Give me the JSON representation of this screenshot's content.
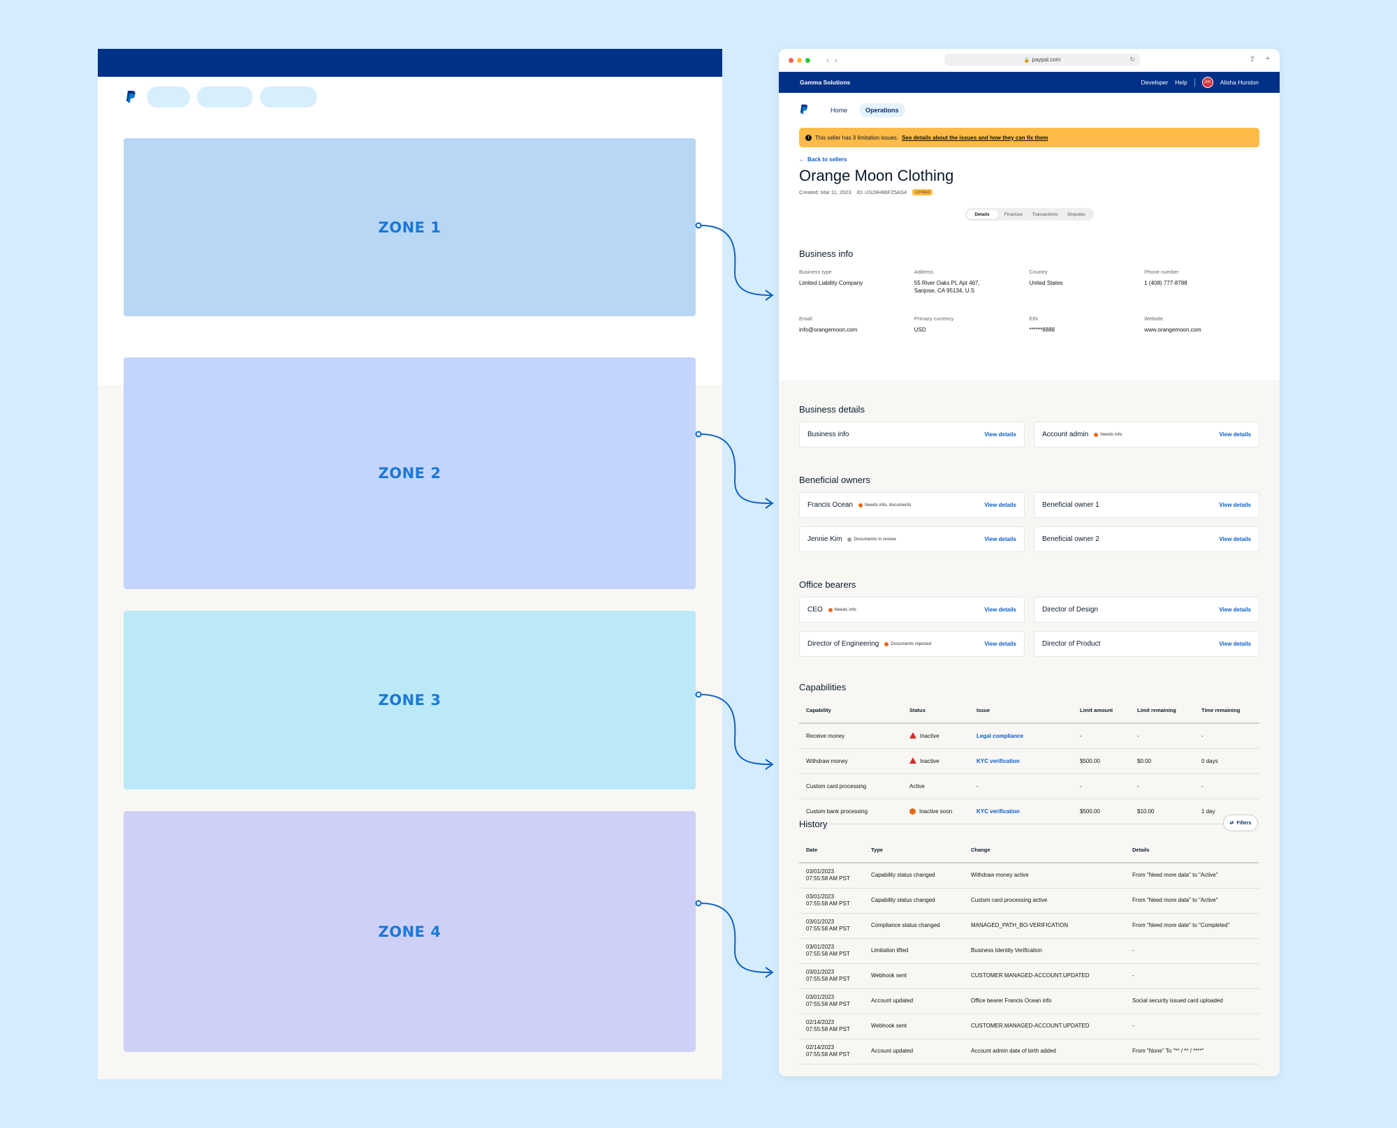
{
  "wireframe": {
    "zones": [
      "ZONE 1",
      "ZONE 2",
      "ZONE 3",
      "ZONE 4"
    ],
    "colors": {
      "topbar": "#003087",
      "zone1": "#b7d7f5",
      "zone2": "#c4d5fd",
      "zone3": "#bbe9f8",
      "zone4": "#cfd0f7",
      "connector": "#0f63c4"
    }
  },
  "browser": {
    "url": "paypal.com"
  },
  "topbar": {
    "brand": "Gamma Solutions",
    "developer": "Developer",
    "help": "Help",
    "avatar_initials": "AH",
    "user_name": "Alisha Hurston"
  },
  "nav": {
    "home": "Home",
    "operations": "Operations"
  },
  "alert": {
    "text": "This seller has 3 limitation issues.",
    "link": "See details about the issues and how they can fix them"
  },
  "seller": {
    "back": "Back to sellers",
    "name": "Orange Moon Clothing",
    "created": "Created: Mar 11, 2023",
    "id": "ID: US28H86FZ5AS4",
    "status": "Limited"
  },
  "tabs": [
    "Details",
    "Finances",
    "Transactions",
    "Disputes"
  ],
  "business_info": {
    "title": "Business info",
    "fields": [
      {
        "label": "Business type",
        "value": "Limited Liability Company"
      },
      {
        "label": "Address",
        "value": "55 River Oaks PL Apt 467, Sanjose, CA 95134, U.S"
      },
      {
        "label": "Country",
        "value": "United States"
      },
      {
        "label": "Phone number",
        "value": "1 (408) 777-8788"
      },
      {
        "label": "Email",
        "value": "info@orangemoon.com"
      },
      {
        "label": "Primary currency",
        "value": "USD"
      },
      {
        "label": "EIN",
        "value": "******8888"
      },
      {
        "label": "Website",
        "value": "www.orangemoon.com"
      }
    ]
  },
  "view_details": "View details",
  "business_details": {
    "title": "Business details",
    "cards": [
      {
        "name": "Business info",
        "status": ""
      },
      {
        "name": "Account admin",
        "status": "Needs info"
      }
    ]
  },
  "beneficial_owners": {
    "title": "Beneficial owners",
    "cards": [
      {
        "name": "Francis Ocean",
        "status": "Needs info, documents"
      },
      {
        "name": "Beneficial owner 1",
        "status": ""
      },
      {
        "name": "Jennie Kim",
        "status": "Documents in review"
      },
      {
        "name": "Beneficial owner 2",
        "status": ""
      }
    ]
  },
  "office_bearers": {
    "title": "Office bearers",
    "cards": [
      {
        "name": "CEO",
        "status": "Needs info"
      },
      {
        "name": "Director of Design",
        "status": ""
      },
      {
        "name": "Director of Engineering",
        "status": "Documents rejected"
      },
      {
        "name": "Director of Product",
        "status": ""
      }
    ]
  },
  "capabilities": {
    "title": "Capabilities",
    "headers": [
      "Capability",
      "Status",
      "Issue",
      "Limit amount",
      "Limit remaining",
      "Time remaining"
    ],
    "rows": [
      [
        "Receive money",
        "Inactive",
        "Legal compliance",
        "-",
        "-",
        "-"
      ],
      [
        "Withdraw money",
        "Inactive",
        "KYC verification",
        "$500.00",
        "$0.00",
        "0 days"
      ],
      [
        "Custom card processing",
        "Active",
        "-",
        "-",
        "-",
        "-"
      ],
      [
        "Custom bank processing",
        "Inactive soon",
        "KYC verification",
        "$500.00",
        "$10.00",
        "1 day"
      ]
    ]
  },
  "history": {
    "title": "History",
    "filters": "Filters",
    "headers": [
      "Date",
      "Type",
      "Change",
      "Details"
    ],
    "rows": [
      [
        "03/01/2023",
        "07:55:58 AM PST",
        "Capability status changed",
        "Withdraw money active",
        "From \"Need more data\" to \"Active\""
      ],
      [
        "03/01/2023",
        "07:55:58 AM PST",
        "Capability status changed",
        "Custom card processing active",
        "From \"Need more data\" to \"Active\""
      ],
      [
        "03/01/2023",
        "07:55:58 AM PST",
        "Compliance status changed",
        "MANAGED_PATH_BO-VERIFICATION",
        "From \"Need more date\" to \"Completed\""
      ],
      [
        "03/01/2023",
        "07:55:58 AM PST",
        "Limitation lifted",
        "Business Identity Verification",
        "-"
      ],
      [
        "03/01/2023",
        "07:55:58 AM PST",
        "Webhook sent",
        "CUSTOMER MANAGED-ACCOUNT.UPDATED",
        "-"
      ],
      [
        "03/01/2023",
        "07:55:58 AM PST",
        "Account updated",
        "Office bearer Francis Ocean info",
        "Social security issued card uploaded"
      ],
      [
        "02/14/2023",
        "07:55:58 AM PST",
        "Webhook sent",
        "CUSTOMER.MANAGED-ACCOUNT.UPDATED",
        "-"
      ],
      [
        "02/14/2023",
        "07:55:58 AM PST",
        "Account updated",
        "Account admin date of birth added",
        "From \"None\" To \"** / ** / ****\""
      ]
    ]
  }
}
